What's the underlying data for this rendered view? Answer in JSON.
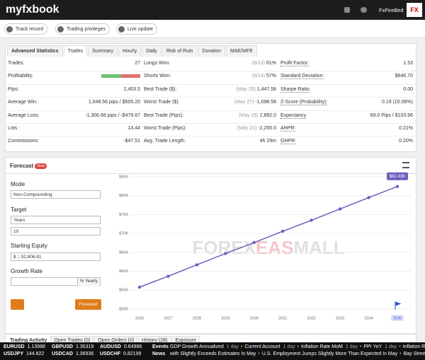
{
  "header": {
    "logo": "myfxbook",
    "user": "FxFireBird",
    "avatar": "FX"
  },
  "toolbar": [
    "Track record",
    "Trading privileges",
    "Live update"
  ],
  "stats": {
    "tabs": [
      "Advanced Statistics",
      "Trades",
      "Summary",
      "Hourly",
      "Daily",
      "Risk of Ruin",
      "Duration",
      "MAE/MFE"
    ],
    "active_tab": 1,
    "rows": [
      [
        {
          "label": "Trades:",
          "value": "27"
        },
        {
          "label": "Longs Won:",
          "note": "(8/13)",
          "value": "61%"
        },
        {
          "label": "Profit Factor:",
          "value": "1.53"
        }
      ],
      [
        {
          "label": "Profitability:",
          "bar": true
        },
        {
          "label": "Shorts Won:",
          "note": "(8/14)",
          "value": "57%"
        },
        {
          "label": "Standard Deviation:",
          "value": "$646.70"
        }
      ],
      [
        {
          "label": "Pips:",
          "value": "2,403.5"
        },
        {
          "label": "Best Trade ($):",
          "note": "(May 29)",
          "value": "1,447.58"
        },
        {
          "label": "Sharpe Ratio",
          "value": "0.00"
        }
      ],
      [
        {
          "label": "Average Win:",
          "value": "1,048.56 pips / $505.20"
        },
        {
          "label": "Worst Trade ($):",
          "note": "(May 27)",
          "value": "-1,098.58"
        },
        {
          "label": "Z-Score (Probability):",
          "value": "0.19 (15.06%)"
        }
      ],
      [
        {
          "label": "Average Loss:",
          "value": "-1,306.68 pips / -$479.67"
        },
        {
          "label": "Best Trade (Pips):",
          "note": "(May 29)",
          "value": "2,892.0"
        },
        {
          "label": "Expectancy",
          "value": "89.0 Pips / $103.96"
        }
      ],
      [
        {
          "label": "Lots :",
          "value": "14.44"
        },
        {
          "label": "Worst Trade (Pips):",
          "note": "(May 21)",
          "value": "-2,200.0"
        },
        {
          "label": "AHPR:",
          "value": "0.21%"
        }
      ],
      [
        {
          "label": "Commissions:",
          "value": "-$47.51"
        },
        {
          "label": "Avg. Trade Length:",
          "value": "4h 29m"
        },
        {
          "label": "GHPR:",
          "value": "0.20%"
        }
      ]
    ]
  },
  "forecast": {
    "title": "Forecast",
    "badge": "New",
    "form": {
      "mode_label": "Mode",
      "mode": "Non-Compounding",
      "target_label": "Target",
      "target_unit": "Years",
      "target_value": "10",
      "equity_label": "Starting Equity",
      "equity_currency": "$",
      "equity": "52,806.81",
      "growth_label": "Growth Rate",
      "growth_unit": "% Yearly"
    },
    "button": "Forecast",
    "watermark": [
      "FOREX",
      "EAS",
      "MALL"
    ],
    "chart": {
      "type": "line",
      "categories": [
        "2026",
        "2027",
        "2028",
        "2029",
        "2030",
        "2031",
        "2032",
        "2033",
        "2034",
        "2035"
      ],
      "values": [
        55800,
        58700,
        61700,
        64700,
        67600,
        70600,
        73500,
        76500,
        79500,
        82430
      ],
      "value_labels": [
        null,
        null,
        null,
        null,
        null,
        null,
        null,
        null,
        null,
        "$82.43K"
      ],
      "color": "#6a5fc1",
      "ylim": [
        50000,
        85000
      ],
      "yticks": [
        {
          "value": 50000,
          "label": "$50K"
        },
        {
          "value": 55000,
          "label": "$55K"
        },
        {
          "value": 60000,
          "label": "$60K"
        },
        {
          "value": 65000,
          "label": "$65K"
        },
        {
          "value": 70000,
          "label": "$70K"
        },
        {
          "value": 75000,
          "label": "$75K"
        },
        {
          "value": 80000,
          "label": "$80K"
        },
        {
          "value": 85000,
          "label": "$85K"
        }
      ],
      "grid": true
    }
  },
  "activity": {
    "tabs": [
      "Trading Activity",
      "Open Trades (0)",
      "Open Orders (0)",
      "History (28)",
      "Exposure"
    ]
  },
  "ticker": {
    "quotes": [
      [
        "EURUSD",
        "1.13988"
      ],
      [
        "GBPUSD",
        "1.35319"
      ],
      [
        "AUDUSD",
        "0.64986"
      ],
      [
        "USDJPY",
        "144.822"
      ],
      [
        "USDCAD",
        "1.36936"
      ],
      [
        "USDCHF",
        "0.82199"
      ]
    ],
    "events_label": "Events",
    "events": [
      {
        "text": "GDP Growth Annualized",
        "when": "1 day"
      },
      {
        "text": "Current Account",
        "when": "1 day"
      },
      {
        "text": "Inflation Rate MoM",
        "when": "1 day"
      },
      {
        "text": "PPI YoY",
        "when": "1 day"
      },
      {
        "text": "Inflation Rate"
      }
    ],
    "news_label": "News",
    "news": [
      "with Slightly Exceeds Estimates In May",
      "U.S. Employment Jumps Slightly More Than Expected In May",
      "Bay Street M"
    ]
  }
}
